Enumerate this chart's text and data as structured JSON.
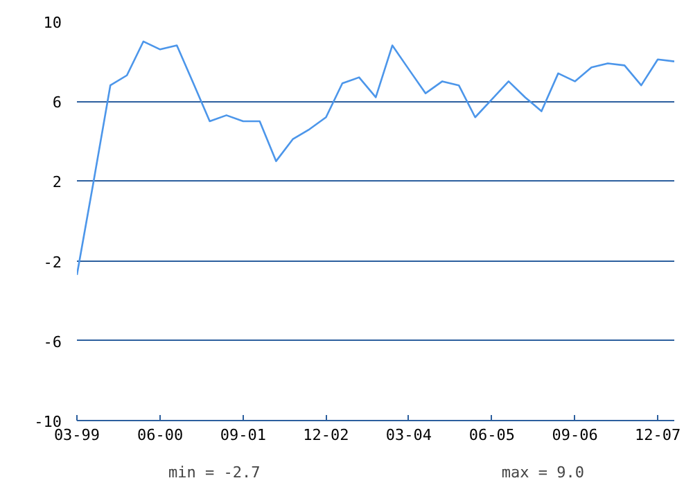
{
  "chart_data": {
    "type": "line",
    "x": [
      "1999-03",
      "1999-06",
      "1999-09",
      "1999-12",
      "2000-03",
      "2000-06",
      "2000-09",
      "2000-12",
      "2001-03",
      "2001-06",
      "2001-09",
      "2001-12",
      "2002-03",
      "2002-06",
      "2002-09",
      "2002-12",
      "2003-03",
      "2003-06",
      "2003-09",
      "2003-12",
      "2004-03",
      "2004-06",
      "2004-09",
      "2004-12",
      "2005-03",
      "2005-06",
      "2005-09",
      "2005-12",
      "2006-03",
      "2006-06",
      "2006-09",
      "2006-12",
      "2007-03",
      "2007-06",
      "2007-09",
      "2007-12",
      "2008-03"
    ],
    "series": [
      {
        "color": "#4c96ea",
        "values": [
          -2.7,
          2.0,
          6.8,
          7.3,
          9.0,
          8.6,
          8.8,
          6.9,
          5.0,
          5.3,
          5.0,
          5.0,
          3.0,
          4.1,
          4.6,
          5.2,
          6.9,
          7.2,
          6.2,
          8.8,
          7.6,
          6.4,
          7.0,
          6.8,
          5.2,
          6.1,
          7.0,
          6.2,
          5.5,
          7.4,
          7.0,
          7.7,
          7.9,
          7.8,
          6.8,
          8.1,
          8.0
        ]
      }
    ],
    "xlim": [
      "1999-03",
      "2008-03"
    ],
    "xticks": [
      {
        "value": "1999-03",
        "label": "03-99"
      },
      {
        "value": "2000-06",
        "label": "06-00"
      },
      {
        "value": "2001-09",
        "label": "09-01"
      },
      {
        "value": "2002-12",
        "label": "12-02"
      },
      {
        "value": "2004-03",
        "label": "03-04"
      },
      {
        "value": "2005-06",
        "label": "06-05"
      },
      {
        "value": "2006-09",
        "label": "09-06"
      },
      {
        "value": "2007-12",
        "label": "12-07"
      }
    ],
    "ylim": [
      -10,
      10
    ],
    "yticks": [
      -10,
      -6,
      -2,
      2,
      6,
      10
    ],
    "grid": "y",
    "annotations": [
      "min = -2.7",
      "max = 9.0"
    ]
  }
}
